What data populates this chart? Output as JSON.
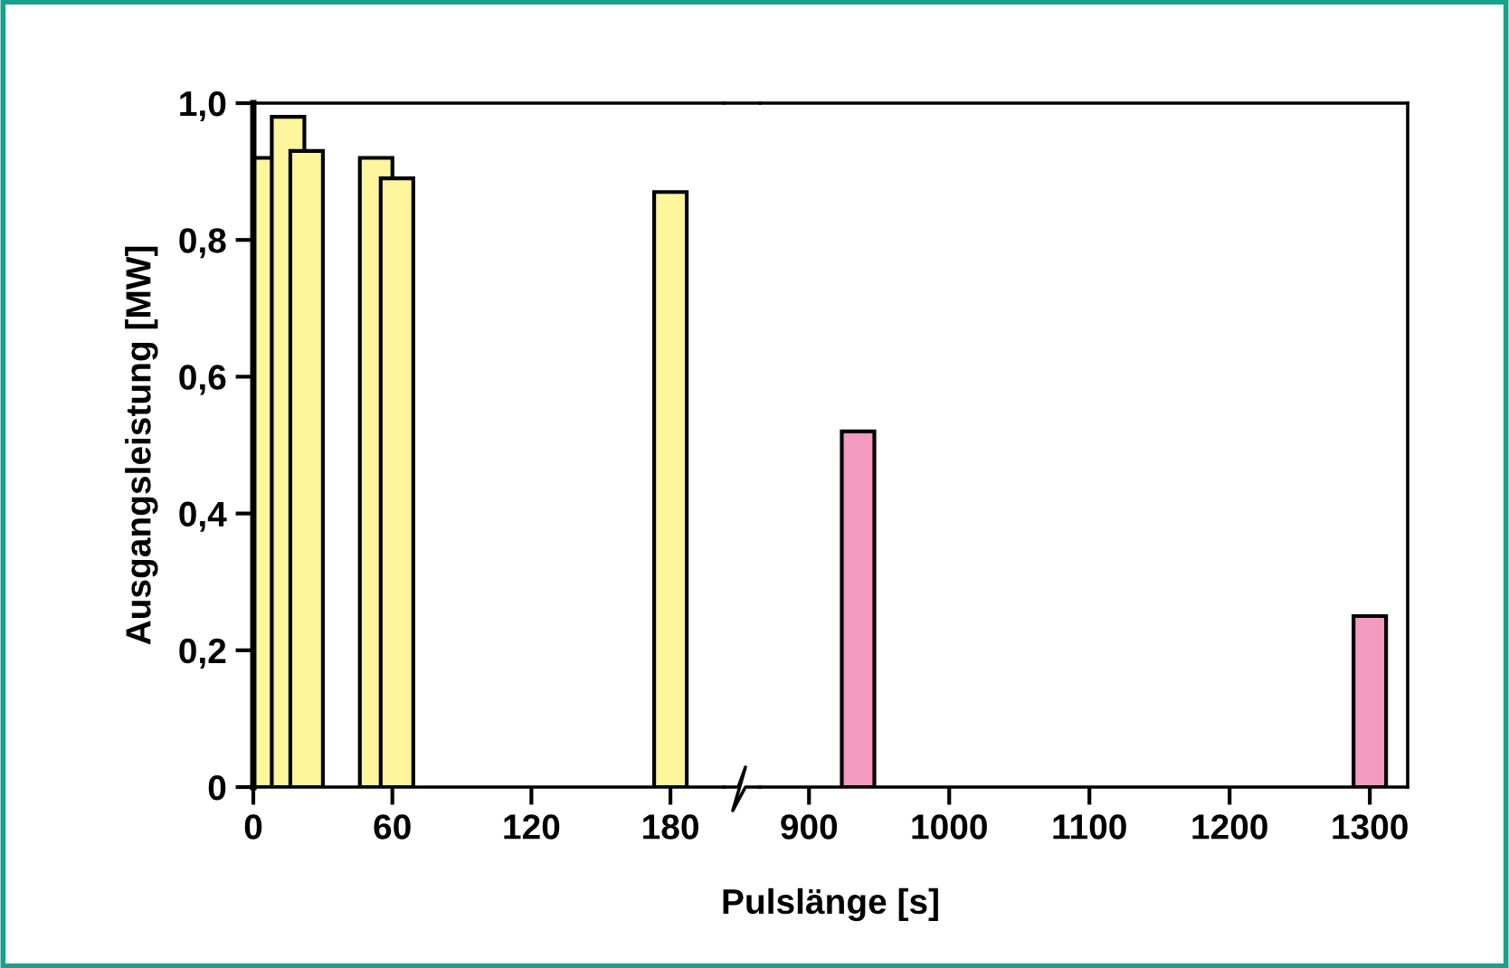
{
  "chart_data": [
    {
      "type": "bar",
      "ylabel": "Ausgangsleistung [MW]",
      "x": [
        5,
        15,
        23,
        53,
        62,
        180
      ],
      "values": [
        0.92,
        0.98,
        0.93,
        0.92,
        0.89,
        0.87
      ],
      "color": "#fff59d",
      "xlim": [
        0,
        203
      ],
      "xticks": [
        0,
        60,
        120,
        180
      ],
      "ylim": [
        0,
        1
      ],
      "yticks": [
        0,
        {
          "value": 0.2,
          "label": "0,2"
        },
        {
          "value": 0.4,
          "label": "0,4"
        },
        {
          "value": 0.6,
          "label": "0,6"
        },
        {
          "value": 0.8,
          "label": "0,8"
        },
        {
          "value": 1.0,
          "label": "1,0"
        }
      ],
      "grid": false
    },
    {
      "type": "bar",
      "xlabel": "Pulslänge [s]",
      "x": [
        935,
        1300
      ],
      "values": [
        0.52,
        0.25
      ],
      "color": "#f49ac1",
      "xlim": [
        865,
        1327
      ],
      "xticks": [
        900,
        1000,
        1100,
        1200,
        1300
      ],
      "ylim": [
        0,
        1
      ],
      "tick_labels": "x",
      "grid": false
    }
  ]
}
